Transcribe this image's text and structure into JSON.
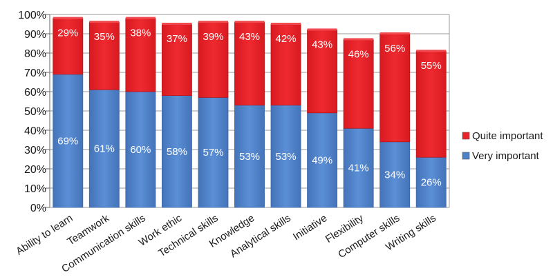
{
  "chart_data": {
    "type": "bar",
    "stacked": true,
    "title": "",
    "xlabel": "",
    "ylabel": "",
    "ylim": [
      0,
      100
    ],
    "yticks": [
      "0%",
      "10%",
      "20%",
      "30%",
      "40%",
      "50%",
      "60%",
      "70%",
      "80%",
      "90%",
      "100%"
    ],
    "grid": true,
    "legend_position": "right",
    "categories": [
      "Ability to learn",
      "Teamwork",
      "Communication skills",
      "Work ethic",
      "Technical skills",
      "Knowledge",
      "Analytical skills",
      "Initiative",
      "Flexibility",
      "Computer skills",
      "Writing skills"
    ],
    "series": [
      {
        "name": "Very important",
        "color": "#4f81c7",
        "values": [
          69,
          61,
          60,
          58,
          57,
          53,
          53,
          49,
          41,
          34,
          26
        ],
        "labels": [
          "69%",
          "61%",
          "60%",
          "58%",
          "57%",
          "53%",
          "53%",
          "49%",
          "41%",
          "34%",
          "26%"
        ]
      },
      {
        "name": "Quite important",
        "color": "#e8232a",
        "values": [
          29,
          35,
          38,
          37,
          39,
          43,
          42,
          43,
          46,
          56,
          55
        ],
        "labels": [
          "29%",
          "35%",
          "38%",
          "37%",
          "39%",
          "43%",
          "42%",
          "43%",
          "46%",
          "56%",
          "55%"
        ]
      }
    ],
    "legend": [
      "Quite important",
      "Very important"
    ]
  }
}
